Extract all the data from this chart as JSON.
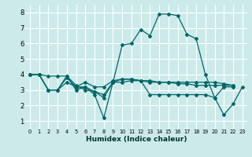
{
  "xlabel": "Humidex (Indice chaleur)",
  "xlim": [
    -0.5,
    23.5
  ],
  "ylim": [
    0.5,
    8.5
  ],
  "yticks": [
    1,
    2,
    3,
    4,
    5,
    6,
    7,
    8
  ],
  "xticks": [
    0,
    1,
    2,
    3,
    4,
    5,
    6,
    7,
    8,
    9,
    10,
    11,
    12,
    13,
    14,
    15,
    16,
    17,
    18,
    19,
    20,
    21,
    22,
    23
  ],
  "background_color": "#cceaea",
  "grid_color": "#ffffff",
  "line_color": "#006666",
  "lines": [
    [
      0,
      4.0,
      1,
      4.0,
      2,
      3.9,
      3,
      3.9,
      4,
      3.9,
      5,
      3.3,
      6,
      3.0,
      7,
      2.9,
      8,
      2.7,
      9,
      3.5,
      10,
      3.5,
      11,
      3.6,
      12,
      3.6,
      13,
      3.5,
      14,
      3.5,
      15,
      3.5,
      16,
      3.4,
      17,
      3.4,
      18,
      3.3,
      19,
      3.3,
      20,
      3.3,
      21,
      3.3,
      22,
      3.3
    ],
    [
      0,
      4.0,
      1,
      4.0,
      2,
      3.0,
      3,
      3.0,
      4,
      3.9,
      5,
      3.0,
      6,
      3.2,
      7,
      2.7,
      8,
      1.2,
      9,
      3.5,
      10,
      5.9,
      11,
      6.0,
      12,
      6.9,
      13,
      6.5,
      14,
      7.9,
      15,
      7.9,
      16,
      7.8,
      17,
      6.6,
      18,
      6.3,
      19,
      4.0,
      20,
      2.5,
      21,
      1.4,
      22,
      2.1,
      23,
      3.2
    ],
    [
      0,
      4.0,
      1,
      4.0,
      2,
      3.0,
      3,
      3.0,
      4,
      3.8,
      5,
      3.2,
      6,
      3.5,
      7,
      3.2,
      8,
      3.2,
      9,
      3.6,
      10,
      3.7,
      11,
      3.7,
      12,
      3.6,
      13,
      3.6,
      14,
      3.5,
      15,
      3.5,
      16,
      3.5,
      17,
      3.5,
      18,
      3.5,
      19,
      3.5,
      20,
      3.5,
      21,
      3.4,
      22,
      3.3
    ],
    [
      0,
      4.0,
      1,
      4.0,
      2,
      3.0,
      3,
      3.0,
      4,
      3.5,
      5,
      3.2,
      6,
      3.2,
      7,
      2.9,
      8,
      2.5,
      9,
      3.5,
      10,
      3.7,
      11,
      3.7,
      12,
      3.6,
      13,
      2.7,
      14,
      2.7,
      15,
      2.7,
      16,
      2.7,
      17,
      2.7,
      18,
      2.7,
      19,
      2.7,
      20,
      2.5,
      21,
      3.2,
      22,
      3.2
    ]
  ],
  "xlabel_fontsize": 6.5,
  "xtick_fontsize": 4.8,
  "ytick_fontsize": 6.0
}
